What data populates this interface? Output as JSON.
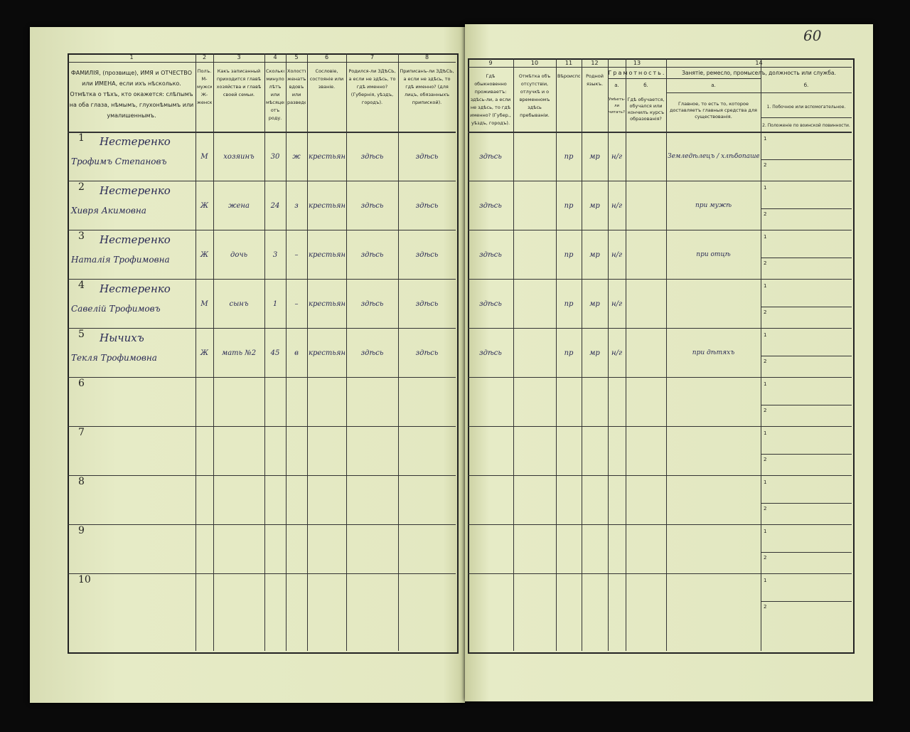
{
  "page_number": "60",
  "columns_left": [
    {
      "n": "1",
      "text": "ФАМИЛІЯ, (прозвище), ИМЯ и ОТЧЕСТВО или ИМЕНА, если ихъ нѣсколько. Отмѣтка о тѣхъ, кто окажется: слѣпымъ на оба глаза, нѣмымъ, глухонѣмымъ или умалишеннымъ."
    },
    {
      "n": "2",
      "text": "Полъ. М-мужской. Ж-женскій."
    },
    {
      "n": "3",
      "text": "Какъ записанный приходится главѣ хозяйства и главѣ своей семьи."
    },
    {
      "n": "4",
      "text": "Сколько минуло лѣтъ или мѣсяцевъ отъ роду."
    },
    {
      "n": "5",
      "text": "Холостъ, женатъ, вдовъ или разведенъ."
    },
    {
      "n": "6",
      "text": "Сословіе, состояніе или званіе."
    },
    {
      "n": "7",
      "text": "Родился-ли ЗДѢСЬ, а если не здѣсь, то гдѣ именно? (Губернія, уѣздъ, городъ)."
    },
    {
      "n": "8",
      "text": "Приписанъ-ли ЗДѢСЬ, а если не здѣсь, то гдѣ именно? (для лицъ, обязанныхъ припиской)."
    }
  ],
  "columns_right": [
    {
      "n": "9",
      "text": "Гдѣ обыкновенно проживаетъ: здѣсь-ли, а если не здѣсь, то гдѣ именно? (Губер., уѣздъ, городъ)."
    },
    {
      "n": "10",
      "text": "Отмѣтка объ отсутствіи, отлучкѣ и о временномъ здѣсь пребываніи."
    },
    {
      "n": "11",
      "text": "Вѣроисповѣданіе."
    },
    {
      "n": "12",
      "text": "Родной языкъ."
    },
    {
      "n": "13",
      "title": "Грамотность.",
      "a": "Умѣетъ-ли читать?",
      "b": "Гдѣ обучается, обучался или кончилъ курсъ образованія?"
    },
    {
      "n": "14",
      "title": "Занятіе, ремесло, промыселъ, должность или служба.",
      "a": "Главное, то есть то, которое доставляетъ главныя средства для существованія.",
      "b1": "1. Побочное или вспомогательное.",
      "b2": "2. Положеніе по воинской повинности."
    }
  ],
  "sub_a": "а.",
  "sub_b": "б.",
  "rows": [
    {
      "n": "1",
      "surname": "Нестеренко",
      "name": "Трофимъ Степановъ",
      "sex": "М",
      "rel": "хозяинъ",
      "age": "30",
      "mar": "ж",
      "estate": "крестьянинъ",
      "born": "здѣсь",
      "reg": "здѣсь",
      "lives": "здѣсь",
      "absent": "",
      "faith": "пр",
      "lang": "мр",
      "lit": "н/г",
      "occ": "Земледѣлецъ / хлѣбопашецъ"
    },
    {
      "n": "2",
      "surname": "Нестеренко",
      "name": "Хивря Акимовна",
      "sex": "Ж",
      "rel": "жена",
      "age": "24",
      "mar": "з",
      "estate": "крестьянка",
      "born": "здѣсь",
      "reg": "здѣсь",
      "lives": "здѣсь",
      "absent": "",
      "faith": "пр",
      "lang": "мр",
      "lit": "н/г",
      "occ": "при мужѣ"
    },
    {
      "n": "3",
      "surname": "Нестеренко",
      "name": "Наталія Трофимовна",
      "sex": "Ж",
      "rel": "дочь",
      "age": "3",
      "mar": "–",
      "estate": "крестьянка",
      "born": "здѣсь",
      "reg": "здѣсь",
      "lives": "здѣсь",
      "absent": "",
      "faith": "пр",
      "lang": "мр",
      "lit": "н/г",
      "occ": "при отцѣ"
    },
    {
      "n": "4",
      "surname": "Нестеренко",
      "name": "Савелій Трофимовъ",
      "sex": "М",
      "rel": "сынъ",
      "age": "1",
      "mar": "–",
      "estate": "крестьянинъ",
      "born": "здѣсь",
      "reg": "здѣсь",
      "lives": "здѣсь",
      "absent": "",
      "faith": "пр",
      "lang": "мр",
      "lit": "н/г",
      "occ": ""
    },
    {
      "n": "5",
      "surname": "Нычихъ",
      "name": "Текля Трофимовна",
      "sex": "Ж",
      "rel": "мать №2",
      "age": "45",
      "mar": "в",
      "estate": "крестьянка",
      "born": "здѣсь",
      "reg": "здѣсь",
      "lives": "здѣсь",
      "absent": "",
      "faith": "пр",
      "lang": "мр",
      "lit": "н/г",
      "occ": "при дѣтяхъ"
    },
    {
      "n": "6"
    },
    {
      "n": "7"
    },
    {
      "n": "8"
    },
    {
      "n": "9"
    },
    {
      "n": "10"
    }
  ],
  "sub_rows": [
    "1",
    "2"
  ]
}
